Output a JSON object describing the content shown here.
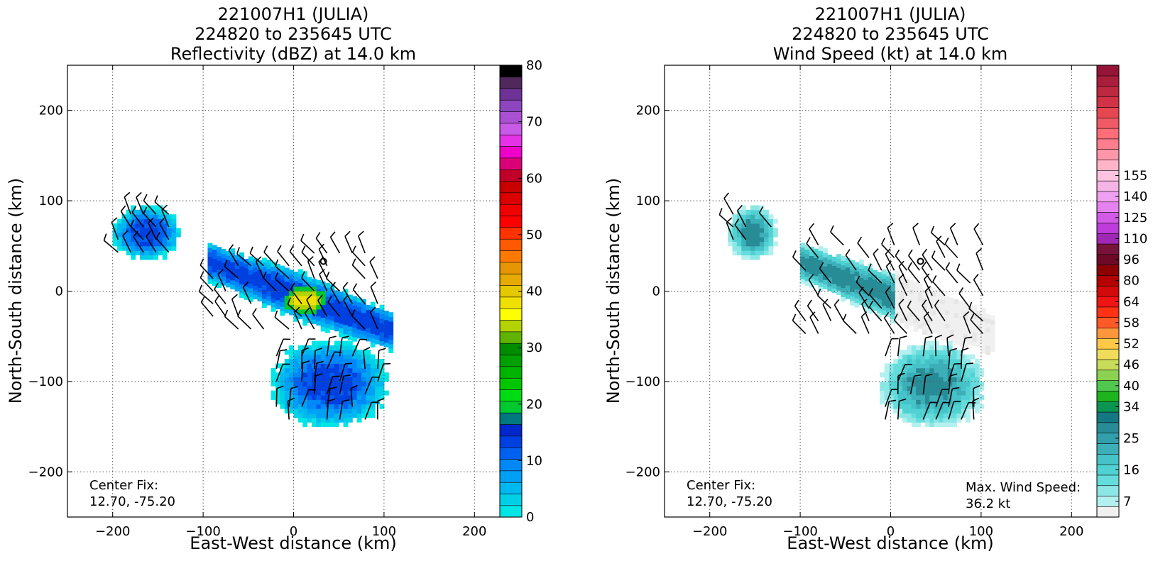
{
  "chart_data": [
    {
      "type": "heatmap",
      "title": [
        "221007H1 (JULIA)",
        "224820 to 235645 UTC",
        "Reflectivity (dBZ) at 14.0 km"
      ],
      "xlabel": "East-West distance (km)",
      "ylabel": "North-South distance (km)",
      "xlim": [
        -250,
        250
      ],
      "ylim": [
        -250,
        250
      ],
      "xticks": [
        -200,
        -100,
        0,
        100,
        200
      ],
      "yticks": [
        -200,
        -100,
        0,
        100,
        200
      ],
      "grid": true,
      "annotation": [
        "Center Fix:",
        "12.70, -75.20"
      ],
      "colorbar": {
        "min": 0,
        "max": 80,
        "ticks": [
          0,
          10,
          20,
          30,
          40,
          50,
          60,
          70,
          80
        ],
        "colors": [
          "#00e6e6",
          "#00cfe8",
          "#00b8f0",
          "#00a0f5",
          "#0088f8",
          "#0060f0",
          "#0040e0",
          "#0028cc",
          "#007880",
          "#00c830",
          "#00dc14",
          "#00c800",
          "#00b400",
          "#00a000",
          "#008c00",
          "#60b400",
          "#b4d200",
          "#ffff00",
          "#f0e000",
          "#e6c800",
          "#e6aa00",
          "#e69600",
          "#ff7800",
          "#ff5a00",
          "#ff3200",
          "#ff0000",
          "#f00000",
          "#dc0000",
          "#c80000",
          "#c00028",
          "#dc0078",
          "#f000c8",
          "#e632e6",
          "#c85ae6",
          "#aa50d2",
          "#8c46be",
          "#6e3296",
          "#50285a",
          "#000000"
        ]
      },
      "regions": [
        {
          "name": "northwest",
          "x_range": [
            -200,
            -125
          ],
          "y_range": [
            35,
            95
          ]
        },
        {
          "name": "central",
          "x_range": [
            -95,
            110
          ],
          "y_range": [
            -50,
            60
          ]
        },
        {
          "name": "core",
          "x_range": [
            -10,
            35
          ],
          "y_range": [
            -25,
            5
          ]
        },
        {
          "name": "south",
          "x_range": [
            -25,
            105
          ],
          "y_range": [
            -150,
            -55
          ]
        }
      ],
      "center_marker": [
        33,
        33
      ]
    },
    {
      "type": "heatmap",
      "title": [
        "221007H1 (JULIA)",
        "224820 to 235645 UTC",
        "Wind Speed (kt) at 14.0 km"
      ],
      "xlabel": "East-West distance (km)",
      "ylabel": "North-South distance (km)",
      "xlim": [
        -250,
        250
      ],
      "ylim": [
        -250,
        250
      ],
      "xticks": [
        -200,
        -100,
        0,
        100,
        200
      ],
      "yticks": [
        -200,
        -100,
        0,
        100,
        200
      ],
      "grid": true,
      "annotation": [
        "Center Fix:",
        "12.70, -75.20"
      ],
      "annotation_right": [
        "Max. Wind Speed:",
        "36.2 kt"
      ],
      "colorbar": {
        "min": 4,
        "max": 160,
        "ticks": [
          7,
          16,
          25,
          34,
          40,
          46,
          52,
          58,
          64,
          80,
          96,
          110,
          125,
          140,
          155
        ],
        "tick_positions": [
          1,
          4,
          7,
          10,
          12,
          14,
          16,
          18,
          20,
          22,
          24,
          26,
          28,
          30,
          32
        ],
        "colors": [
          "#f0f0f0",
          "#b4f0f0",
          "#8ce6e6",
          "#64dcdc",
          "#50d2d2",
          "#46c3c8",
          "#3cafb9",
          "#32a0aa",
          "#288c96",
          "#147882",
          "#0a9650",
          "#1eb41e",
          "#50c850",
          "#8cd250",
          "#c8dc5a",
          "#f0dc5a",
          "#ffc846",
          "#ff963c",
          "#ff5a28",
          "#ff3214",
          "#f01414",
          "#d20a0a",
          "#b40000",
          "#8c0000",
          "#6e0a28",
          "#78143c",
          "#a028b4",
          "#be3cdc",
          "#d25ae6",
          "#e682f0",
          "#f0a0f0",
          "#f5b4e6",
          "#ffc3e1",
          "#ffb4c8",
          "#ff96aa",
          "#ff7d8c",
          "#ff6e78",
          "#f05a64",
          "#e64650",
          "#d23246",
          "#be2841",
          "#aa1e3c",
          "#961437"
        ]
      },
      "regions": [
        {
          "name": "northwest",
          "x_range": [
            -180,
            -125
          ],
          "y_range": [
            35,
            95
          ]
        },
        {
          "name": "central",
          "x_range": [
            -100,
            115
          ],
          "y_range": [
            -55,
            60
          ]
        },
        {
          "name": "south",
          "x_range": [
            -12,
            105
          ],
          "y_range": [
            -150,
            -58
          ]
        }
      ],
      "center_marker": [
        33,
        33
      ]
    }
  ]
}
